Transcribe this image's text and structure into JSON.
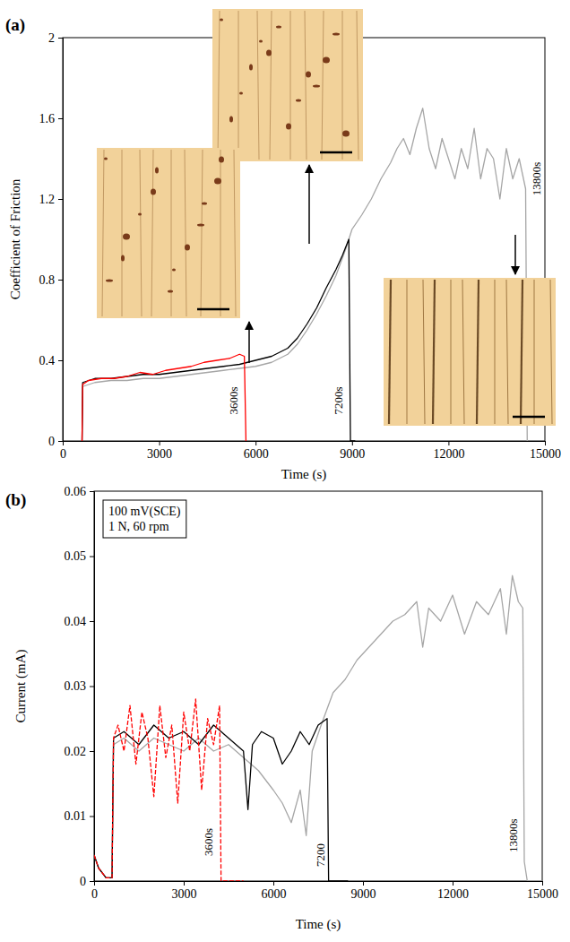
{
  "chart_data": [
    {
      "type": "line",
      "label": "(a)",
      "x_label": "Time (s)",
      "y_label": "Coefficient of Friction",
      "xlim": [
        0,
        15000
      ],
      "xticks": [
        0,
        3000,
        6000,
        9000,
        12000,
        15000
      ],
      "ylim": [
        0,
        2
      ],
      "yticks": [
        0,
        0.4,
        0.8,
        1.2,
        1.6,
        2
      ],
      "series": [
        {
          "color": "#a6a6a6",
          "x": [
            600,
            620,
            1000,
            1500,
            2000,
            2500,
            3000,
            3500,
            4000,
            4500,
            5000,
            5500,
            6000,
            6500,
            7000,
            7300,
            7600,
            7900,
            8200,
            8500,
            8800,
            9000,
            9300,
            9600,
            9900,
            10200,
            10400,
            10600,
            10800,
            11000,
            11200,
            11400,
            11600,
            11800,
            12000,
            12200,
            12400,
            12600,
            12800,
            13000,
            13200,
            13400,
            13600,
            13800,
            14000,
            14200,
            14400,
            14450
          ],
          "values": [
            0,
            0.27,
            0.29,
            0.3,
            0.3,
            0.31,
            0.31,
            0.32,
            0.33,
            0.34,
            0.35,
            0.36,
            0.37,
            0.39,
            0.43,
            0.48,
            0.55,
            0.63,
            0.72,
            0.82,
            0.95,
            1.05,
            1.12,
            1.2,
            1.3,
            1.38,
            1.45,
            1.5,
            1.42,
            1.55,
            1.65,
            1.45,
            1.35,
            1.5,
            1.4,
            1.3,
            1.45,
            1.35,
            1.55,
            1.3,
            1.45,
            1.4,
            1.2,
            1.45,
            1.3,
            1.4,
            1.25,
            0
          ]
        },
        {
          "color": "#000000",
          "x": [
            600,
            620,
            1000,
            1500,
            2000,
            2500,
            3000,
            3500,
            4000,
            4500,
            5000,
            5500,
            6000,
            6500,
            7000,
            7300,
            7600,
            7900,
            8200,
            8500,
            8700,
            8900,
            8950,
            9100
          ],
          "values": [
            0,
            0.29,
            0.31,
            0.31,
            0.32,
            0.33,
            0.33,
            0.34,
            0.35,
            0.36,
            0.37,
            0.38,
            0.4,
            0.42,
            0.46,
            0.51,
            0.58,
            0.66,
            0.76,
            0.85,
            0.92,
            1.0,
            0,
            0
          ]
        },
        {
          "color": "#ff0000",
          "x": [
            600,
            620,
            800,
            1200,
            1600,
            2000,
            2400,
            2800,
            3200,
            3600,
            4000,
            4400,
            4800,
            5200,
            5500,
            5650,
            5700
          ],
          "values": [
            0,
            0.28,
            0.3,
            0.31,
            0.31,
            0.32,
            0.34,
            0.33,
            0.35,
            0.36,
            0.37,
            0.39,
            0.4,
            0.41,
            0.43,
            0.42,
            0
          ]
        }
      ],
      "annotations": [
        {
          "text": "3600s",
          "x": 5450,
          "y": 0.2
        },
        {
          "text": "7200s",
          "x": 8700,
          "y": 0.2
        },
        {
          "text": "13800s",
          "x": 14850,
          "y": 1.3
        }
      ]
    },
    {
      "type": "line",
      "label": "(b)",
      "x_label": "Time (s)",
      "y_label": "Current (mA)",
      "xlim": [
        0,
        15000
      ],
      "xticks": [
        0,
        3000,
        6000,
        9000,
        12000,
        15000
      ],
      "ylim": [
        0,
        0.06
      ],
      "yticks": [
        0,
        0.01,
        0.02,
        0.03,
        0.04,
        0.05,
        0.06
      ],
      "text_box": [
        "100 mV(SCE)",
        "1 N, 60 rpm"
      ],
      "series": [
        {
          "color": "#a6a6a6",
          "x": [
            0,
            150,
            400,
            600,
            650,
            1000,
            1500,
            2000,
            2500,
            3000,
            3500,
            4000,
            4500,
            5000,
            5500,
            6000,
            6300,
            6600,
            6900,
            7100,
            7300,
            7600,
            8000,
            8400,
            8800,
            9200,
            9600,
            10000,
            10400,
            10800,
            11000,
            11200,
            11600,
            12000,
            12400,
            12800,
            13200,
            13600,
            13800,
            14000,
            14200,
            14350,
            14400,
            14500,
            15000
          ],
          "values": [
            0.004,
            0.002,
            0.0005,
            0.0005,
            0.021,
            0.022,
            0.02,
            0.022,
            0.021,
            0.02,
            0.022,
            0.02,
            0.021,
            0.019,
            0.017,
            0.014,
            0.012,
            0.009,
            0.014,
            0.007,
            0.02,
            0.024,
            0.029,
            0.031,
            0.034,
            0.036,
            0.038,
            0.04,
            0.041,
            0.043,
            0.036,
            0.042,
            0.04,
            0.044,
            0.038,
            0.043,
            0.041,
            0.045,
            0.038,
            0.047,
            0.043,
            0.042,
            0.003,
            0,
            0
          ]
        },
        {
          "color": "#000000",
          "x": [
            0,
            150,
            400,
            600,
            650,
            1000,
            1500,
            2000,
            2500,
            3000,
            3500,
            4000,
            4500,
            5000,
            5150,
            5300,
            5600,
            6000,
            6300,
            6600,
            6900,
            7200,
            7500,
            7800,
            7850,
            8500
          ],
          "values": [
            0.004,
            0.002,
            0.0005,
            0.0005,
            0.022,
            0.023,
            0.021,
            0.024,
            0.022,
            0.023,
            0.021,
            0.024,
            0.022,
            0.02,
            0.011,
            0.021,
            0.023,
            0.022,
            0.018,
            0.02,
            0.023,
            0.021,
            0.024,
            0.025,
            0,
            0
          ]
        },
        {
          "color": "#ff0000",
          "line_style": "dashed",
          "x": [
            0,
            150,
            400,
            600,
            650,
            800,
            1000,
            1200,
            1400,
            1600,
            1800,
            2000,
            2200,
            2400,
            2600,
            2800,
            3000,
            3200,
            3400,
            3600,
            3800,
            4000,
            4200,
            4250,
            4500,
            5000
          ],
          "values": [
            0.004,
            0.002,
            0.0005,
            0.0005,
            0.022,
            0.024,
            0.02,
            0.027,
            0.018,
            0.026,
            0.022,
            0.013,
            0.027,
            0.019,
            0.024,
            0.012,
            0.026,
            0.02,
            0.028,
            0.014,
            0.025,
            0.021,
            0.027,
            0,
            0,
            0
          ]
        }
      ],
      "annotations": [
        {
          "text": "3600s",
          "x": 3950,
          "y": 0.006
        },
        {
          "text": "7200",
          "x": 7700,
          "y": 0.004
        },
        {
          "text": "13800s",
          "x": 14150,
          "y": 0.007
        }
      ]
    }
  ]
}
